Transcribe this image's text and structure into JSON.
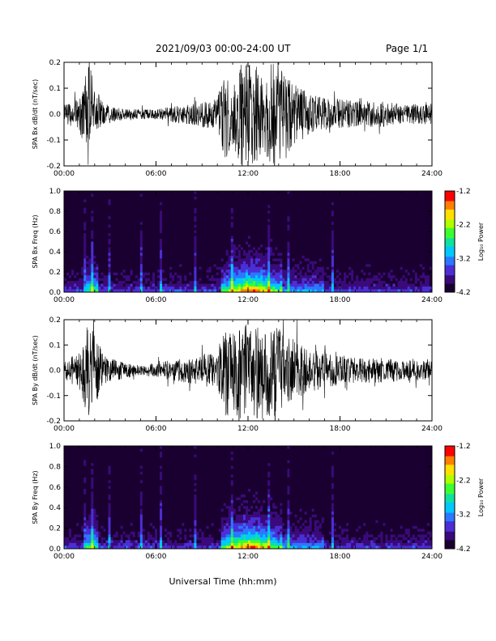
{
  "header": {
    "date_range": "2021/09/03  00:00-24:00 UT",
    "page": "Page 1/1"
  },
  "xaxis_label": "Universal Time (hh:mm)",
  "colors": {
    "waveform": "#000000",
    "spectrogram_scale": [
      "#1a0030",
      "#3a0a7a",
      "#4b2fd6",
      "#2a78ff",
      "#00c8ff",
      "#10e0a0",
      "#3cff30",
      "#b0ff00",
      "#ffe000",
      "#ff8000",
      "#ff0000"
    ]
  },
  "colorbar": {
    "label": "Log₁₀ Power",
    "ticks": [
      "-1.2",
      "-2.2",
      "-3.2",
      "-4.2"
    ],
    "range": [
      -4.2,
      -1.2
    ]
  },
  "chart_data": [
    {
      "type": "line",
      "ylabel": "SPA Bx dB/dt (nT/sec)",
      "ylim": [
        -0.2,
        0.2
      ],
      "yticks": [
        "0.2",
        "0.1",
        "0.0",
        "-0.1",
        "-0.2"
      ],
      "xticks": [
        "00:00",
        "06:00",
        "12:00",
        "18:00",
        "24:00"
      ],
      "x_range_hours": [
        0,
        24
      ],
      "envelope": {
        "hours": [
          0,
          1,
          1.6,
          2,
          2.5,
          3,
          4,
          5,
          6,
          7,
          8,
          9,
          10,
          10.5,
          11,
          11.5,
          12,
          12.5,
          13,
          13.5,
          14,
          15,
          16,
          17,
          18,
          19,
          20,
          21,
          22,
          23,
          24
        ],
        "amplitude": [
          0.035,
          0.06,
          0.2,
          0.12,
          0.05,
          0.035,
          0.02,
          0.02,
          0.02,
          0.03,
          0.04,
          0.05,
          0.06,
          0.2,
          0.12,
          0.2,
          0.2,
          0.2,
          0.15,
          0.2,
          0.2,
          0.12,
          0.08,
          0.06,
          0.06,
          0.05,
          0.05,
          0.05,
          0.04,
          0.04,
          0.04
        ]
      }
    },
    {
      "type": "heatmap",
      "ylabel": "SPA Bx Freq (Hz)",
      "ylim": [
        0.0,
        1.0
      ],
      "yticks": [
        "1.0",
        "0.8",
        "0.6",
        "0.4",
        "0.2",
        "0.0"
      ],
      "xticks": [
        "00:00",
        "06:00",
        "12:00",
        "18:00",
        "24:00"
      ],
      "x_range_hours": [
        0,
        24
      ]
    },
    {
      "type": "line",
      "ylabel": "SPA By dB/dt (nT/sec)",
      "ylim": [
        -0.2,
        0.2
      ],
      "yticks": [
        "0.2",
        "0.1",
        "0.0",
        "-0.1",
        "-0.2"
      ],
      "xticks": [
        "00:00",
        "06:00",
        "12:00",
        "18:00",
        "24:00"
      ],
      "x_range_hours": [
        0,
        24
      ],
      "envelope": {
        "hours": [
          0,
          1,
          1.6,
          2,
          2.5,
          3,
          4,
          5,
          6,
          7,
          8,
          9,
          10,
          10.5,
          11,
          11.5,
          12,
          12.5,
          13,
          13.5,
          14,
          15,
          16,
          17,
          18,
          19,
          20,
          21,
          22,
          23,
          24
        ],
        "amplitude": [
          0.03,
          0.08,
          0.2,
          0.15,
          0.07,
          0.05,
          0.03,
          0.02,
          0.03,
          0.04,
          0.05,
          0.06,
          0.07,
          0.2,
          0.15,
          0.2,
          0.2,
          0.2,
          0.15,
          0.2,
          0.17,
          0.12,
          0.09,
          0.07,
          0.06,
          0.05,
          0.05,
          0.05,
          0.04,
          0.04,
          0.04
        ]
      }
    },
    {
      "type": "heatmap",
      "ylabel": "SPA By Freq (Hz)",
      "ylim": [
        0.0,
        1.0
      ],
      "yticks": [
        "1.0",
        "0.8",
        "0.6",
        "0.4",
        "0.2",
        "0.0"
      ],
      "xticks": [
        "00:00",
        "06:00",
        "12:00",
        "18:00",
        "24:00"
      ],
      "x_range_hours": [
        0,
        24
      ]
    }
  ]
}
